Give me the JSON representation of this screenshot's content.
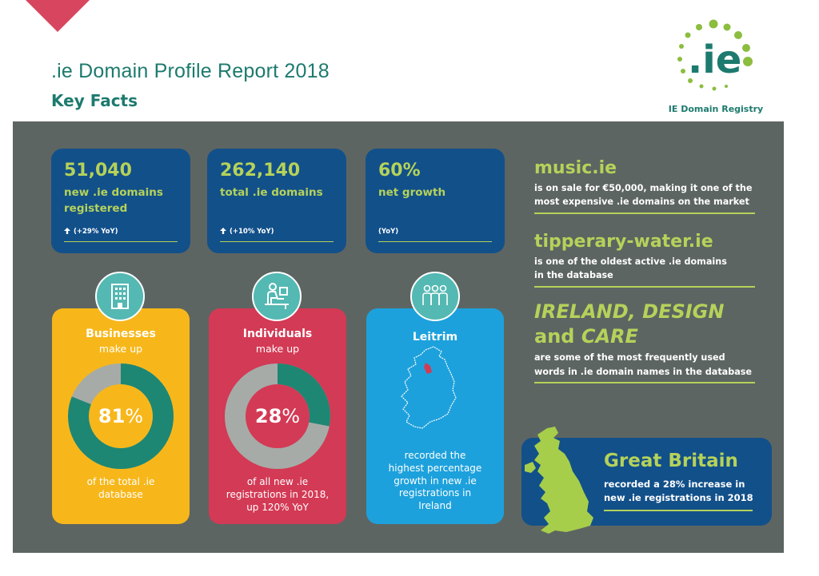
{
  "header": {
    "title": ".ie Domain Profile Report 2018",
    "subtitle": "Key Facts"
  },
  "logo": {
    "mark": ".ie",
    "caption": "IE Domain Registry"
  },
  "stats": [
    {
      "number": "51,040",
      "label_line1": "new .ie domains",
      "label_line2": "registered",
      "foot": "(+29% YoY)",
      "arrow": "up-arrow-icon"
    },
    {
      "number": "262,140",
      "label_line1": "total .ie domains",
      "label_line2": "",
      "foot": "(+10% YoY)",
      "arrow": "up-arrow-icon"
    },
    {
      "number": "60%",
      "label_line1": "net growth",
      "label_line2": "",
      "foot": "(YoY)"
    }
  ],
  "businesses": {
    "title": "Businesses",
    "sub": "make up",
    "value": "81",
    "unit": "%",
    "fraction": 0.81,
    "foot_line1": "of the total .ie",
    "foot_line2": "database",
    "icon": "building-icon"
  },
  "individuals": {
    "title": "Individuals",
    "sub": "make up",
    "value": "28",
    "unit": "%",
    "fraction": 0.28,
    "foot_line1": "of all new .ie",
    "foot_line2": "registrations in 2018,",
    "foot_line3": "up 120% YoY",
    "icon": "person-at-desk-icon"
  },
  "leitrim": {
    "title": "Leitrim",
    "foot_line1": "recorded the",
    "foot_line2": "highest percentage",
    "foot_line3": "growth in new .ie",
    "foot_line4": "registrations in",
    "foot_line5": "Ireland",
    "icon": "people-group-icon"
  },
  "facts": {
    "music_title": "music.ie",
    "music_line1": "is on sale for €50,000, making it one of the",
    "music_line2": "most expensive .ie domains on the market",
    "tipp_title": "tipperary-water.ie",
    "tipp_line1": "is one of the oldest active .ie domains",
    "tipp_line2": "in the database",
    "words_line1": "IRELAND, DESIGN",
    "words_and": "and",
    "words_care": "CARE",
    "words_text1": "are some of the most frequently used",
    "words_text2": "words in .ie domain names in the database"
  },
  "gb": {
    "title": "Great Britain",
    "line1": "recorded a 28% increase in",
    "line2": "new .ie registrations in 2018"
  },
  "colors": {
    "teal": "#1d7a6e",
    "lime": "#b5d25a",
    "navy": "#12508a",
    "yellow": "#f7b71b",
    "crimson": "#d33a55",
    "sky": "#1da1dc",
    "panel": "#5d6562",
    "donut_rest": "#a6aba7",
    "donut_main": "#1d8773"
  }
}
